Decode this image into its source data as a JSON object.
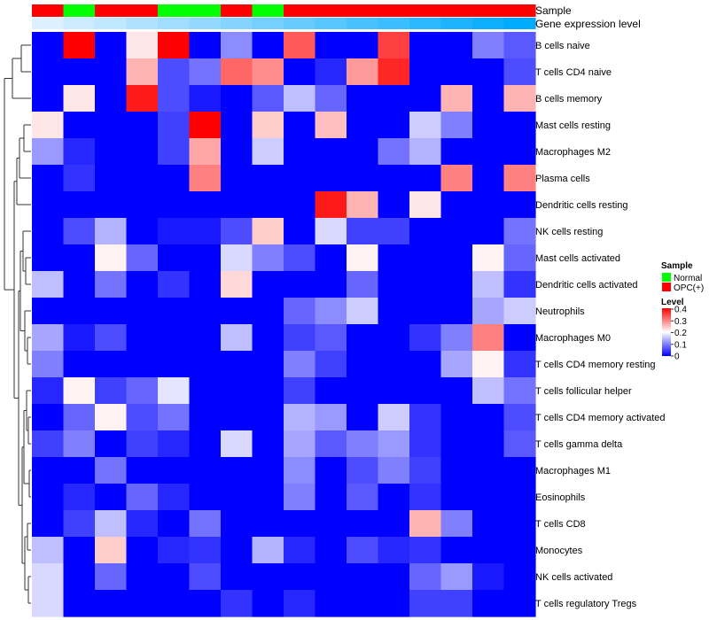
{
  "chart_data": {
    "type": "heatmap",
    "title": "",
    "annotation_tracks": [
      {
        "label": "Sample",
        "values": [
          "OPC(+)",
          "Normal",
          "OPC(+)",
          "OPC(+)",
          "Normal",
          "Normal",
          "OPC(+)",
          "Normal",
          "OPC(+)",
          "OPC(+)",
          "OPC(+)",
          "OPC(+)",
          "OPC(+)",
          "OPC(+)",
          "OPC(+)",
          "OPC(+)"
        ]
      },
      {
        "label": "Gene expression level",
        "values": [
          0.0,
          0.067,
          0.133,
          0.2,
          0.267,
          0.333,
          0.4,
          0.467,
          0.533,
          0.6,
          0.667,
          0.733,
          0.8,
          0.867,
          0.933,
          1.0
        ]
      }
    ],
    "rows": [
      "B cells naive",
      "T cells CD4 naive",
      "B cells memory",
      "Mast cells resting",
      "Macrophages M2",
      "Plasma cells",
      "Dendritic cells resting",
      "NK cells resting",
      "Mast cells activated",
      "Dendritic cells activated",
      "Neutrophils",
      "Macrophages M0",
      "T cells CD4 memory resting",
      "T cells follicular helper",
      "T cells CD4 memory activated",
      "T cells gamma delta",
      "Macrophages M1",
      "Eosinophils",
      "T cells CD8",
      "Monocytes",
      "NK cells activated",
      "T cells regulatory  Tregs"
    ],
    "values": [
      [
        0,
        0.4,
        0,
        0.22,
        0.4,
        0,
        0.11,
        0,
        0.33,
        0,
        0,
        0.35,
        0,
        0,
        0.1,
        0.07
      ],
      [
        0,
        0,
        0,
        0.26,
        0.06,
        0.09,
        0.32,
        0.29,
        0,
        0.03,
        0.28,
        0.37,
        0,
        0,
        0,
        0.06
      ],
      [
        0,
        0.22,
        0,
        0.38,
        0.06,
        0.02,
        0,
        0.07,
        0.15,
        0.08,
        0,
        0,
        0,
        0.26,
        0,
        0.26
      ],
      [
        0.22,
        0,
        0,
        0,
        0.05,
        0.4,
        0,
        0.24,
        0,
        0.25,
        0,
        0,
        0.16,
        0.1,
        0,
        0
      ],
      [
        0.12,
        0.03,
        0,
        0,
        0.05,
        0.27,
        0,
        0.16,
        0,
        0,
        0,
        0.09,
        0.14,
        0,
        0,
        0
      ],
      [
        0,
        0.04,
        0,
        0,
        0,
        0.3,
        0,
        0,
        0,
        0,
        0,
        0,
        0,
        0.3,
        0,
        0.3
      ],
      [
        0,
        0,
        0,
        0,
        0,
        0,
        0,
        0,
        0,
        0.38,
        0.26,
        0,
        0.22,
        0,
        0,
        0
      ],
      [
        0,
        0.06,
        0.14,
        0,
        0.02,
        0.02,
        0.06,
        0.24,
        0,
        0.17,
        0.05,
        0.05,
        0,
        0,
        0,
        0.09
      ],
      [
        0,
        0,
        0.21,
        0.08,
        0,
        0,
        0.17,
        0.1,
        0.06,
        0,
        0.21,
        0,
        0,
        0,
        0.21,
        0.08
      ],
      [
        0.15,
        0,
        0.09,
        0,
        0.04,
        0,
        0.23,
        0,
        0,
        0,
        0.08,
        0,
        0,
        0,
        0.15,
        0.04
      ],
      [
        0,
        0,
        0,
        0,
        0,
        0,
        0,
        0,
        0.08,
        0.11,
        0.16,
        0,
        0,
        0,
        0.13,
        0.16
      ],
      [
        0.13,
        0.02,
        0.06,
        0,
        0,
        0,
        0.15,
        0,
        0.05,
        0.07,
        0,
        0,
        0.04,
        0.1,
        0.3,
        0
      ],
      [
        0.1,
        0,
        0,
        0,
        0,
        0,
        0,
        0,
        0.1,
        0.05,
        0,
        0,
        0,
        0.13,
        0.21,
        0.04
      ],
      [
        0.03,
        0.21,
        0.05,
        0.08,
        0.18,
        0,
        0,
        0,
        0.05,
        0,
        0,
        0,
        0,
        0,
        0.15,
        0.09
      ],
      [
        0,
        0.08,
        0.21,
        0.06,
        0.09,
        0,
        0,
        0,
        0.14,
        0.12,
        0,
        0.16,
        0.04,
        0,
        0,
        0.06
      ],
      [
        0.05,
        0.1,
        0,
        0.05,
        0.03,
        0,
        0.17,
        0,
        0.13,
        0.07,
        0.1,
        0.12,
        0.04,
        0,
        0,
        0.07
      ],
      [
        0,
        0,
        0.09,
        0,
        0,
        0,
        0,
        0,
        0.11,
        0,
        0.06,
        0.1,
        0.05,
        0,
        0,
        0
      ],
      [
        0,
        0.03,
        0,
        0.08,
        0.03,
        0,
        0,
        0,
        0.1,
        0,
        0.07,
        0,
        0.04,
        0,
        0,
        0
      ],
      [
        0,
        0.05,
        0.15,
        0.03,
        0,
        0.09,
        0,
        0,
        0,
        0,
        0,
        0,
        0.26,
        0.1,
        0,
        0
      ],
      [
        0.15,
        0,
        0.24,
        0,
        0.03,
        0.04,
        0,
        0.14,
        0.03,
        0,
        0.06,
        0.03,
        0.04,
        0,
        0,
        0
      ],
      [
        0.17,
        0,
        0.08,
        0,
        0,
        0.06,
        0,
        0,
        0,
        0,
        0,
        0,
        0.08,
        0.12,
        0.02,
        0
      ],
      [
        0.17,
        0,
        0,
        0,
        0,
        0,
        0.04,
        0,
        0.03,
        0,
        0,
        0,
        0.05,
        0.05,
        0,
        0
      ]
    ],
    "color_scale": {
      "min": 0,
      "max": 0.4,
      "low": "#0000FF",
      "mid": "#FFFFFF",
      "high": "#FF0000"
    },
    "legend": {
      "placement": "right",
      "sample": {
        "title": "Sample",
        "entries": [
          {
            "label": "Normal",
            "color": "#00FF00"
          },
          {
            "label": "OPC(+)",
            "color": "#FF0000"
          }
        ]
      },
      "level": {
        "title": "Level",
        "ticks": [
          "0.4",
          "0.3",
          "0.2",
          "0.1",
          "0"
        ]
      }
    },
    "row_dendrogram": true
  }
}
